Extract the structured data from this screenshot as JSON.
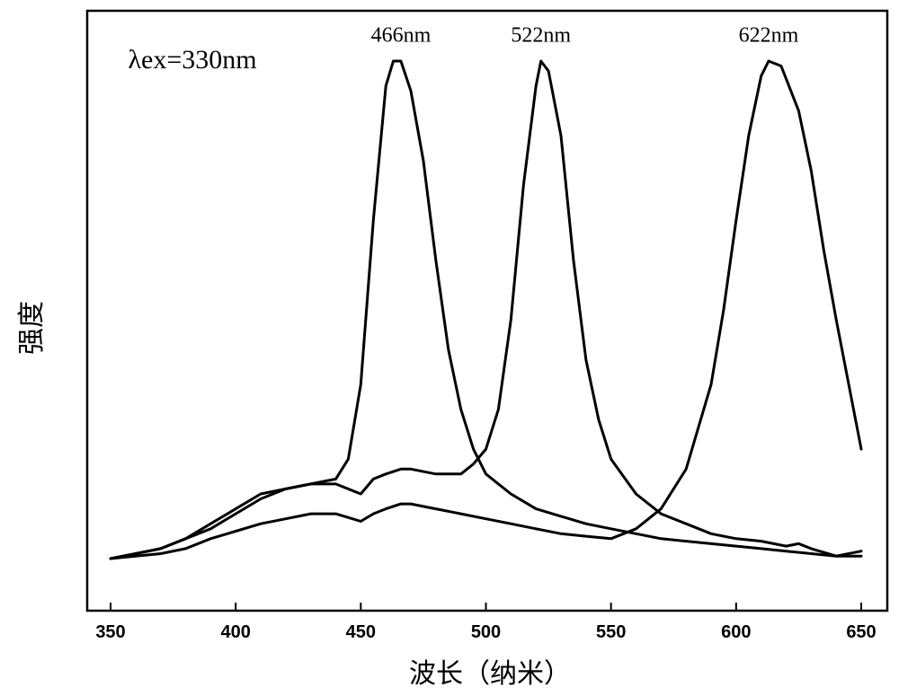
{
  "chart_data": {
    "type": "line",
    "xlabel": "波长（纳米）",
    "ylabel": "强度",
    "xlim": [
      350,
      650
    ],
    "ylim": [
      0,
      1.05
    ],
    "xticks": [
      350,
      400,
      450,
      500,
      550,
      600,
      650
    ],
    "yticks_shown": false,
    "grid": false,
    "legend": "none",
    "annotations": [
      {
        "text": "λex=330nm",
        "x": 357,
        "y": 1.0
      },
      {
        "text": "466nm",
        "x": 466,
        "y": 1.035
      },
      {
        "text": "522nm",
        "x": 522,
        "y": 1.035
      },
      {
        "text": "622nm",
        "x": 613,
        "y": 1.035
      }
    ],
    "series": [
      {
        "x": [
          350,
          360,
          370,
          380,
          390,
          400,
          410,
          420,
          430,
          440,
          445,
          450,
          455,
          460,
          463,
          466,
          470,
          475,
          480,
          485,
          490,
          495,
          500,
          510,
          520,
          530,
          540,
          550,
          560,
          570,
          580,
          590,
          600,
          610,
          620,
          630,
          640,
          650
        ],
        "y": [
          0.0,
          0.01,
          0.02,
          0.04,
          0.06,
          0.09,
          0.12,
          0.14,
          0.15,
          0.16,
          0.2,
          0.35,
          0.68,
          0.95,
          1.0,
          1.0,
          0.94,
          0.8,
          0.6,
          0.42,
          0.3,
          0.22,
          0.17,
          0.13,
          0.1,
          0.085,
          0.07,
          0.06,
          0.05,
          0.04,
          0.035,
          0.03,
          0.025,
          0.02,
          0.015,
          0.01,
          0.005,
          0.005
        ]
      },
      {
        "x": [
          350,
          360,
          370,
          380,
          390,
          400,
          410,
          420,
          430,
          440,
          450,
          455,
          460,
          466,
          470,
          480,
          490,
          495,
          500,
          505,
          510,
          515,
          520,
          522,
          525,
          530,
          535,
          540,
          545,
          550,
          560,
          570,
          580,
          590,
          600,
          610,
          620,
          625,
          630,
          640,
          650
        ],
        "y": [
          0.0,
          0.01,
          0.02,
          0.04,
          0.07,
          0.1,
          0.13,
          0.14,
          0.15,
          0.15,
          0.13,
          0.16,
          0.17,
          0.18,
          0.18,
          0.17,
          0.17,
          0.19,
          0.22,
          0.3,
          0.48,
          0.75,
          0.95,
          1.0,
          0.98,
          0.85,
          0.6,
          0.4,
          0.28,
          0.2,
          0.13,
          0.09,
          0.07,
          0.05,
          0.04,
          0.035,
          0.025,
          0.03,
          0.02,
          0.005,
          0.015
        ]
      },
      {
        "x": [
          350,
          360,
          370,
          380,
          390,
          400,
          410,
          420,
          430,
          440,
          450,
          455,
          460,
          466,
          470,
          480,
          490,
          500,
          510,
          520,
          530,
          540,
          550,
          560,
          570,
          580,
          590,
          595,
          600,
          605,
          610,
          613,
          618,
          625,
          630,
          635,
          640,
          645,
          650
        ],
        "y": [
          0.0,
          0.005,
          0.01,
          0.02,
          0.04,
          0.055,
          0.07,
          0.08,
          0.09,
          0.09,
          0.075,
          0.09,
          0.1,
          0.11,
          0.11,
          0.1,
          0.09,
          0.08,
          0.07,
          0.06,
          0.05,
          0.045,
          0.04,
          0.06,
          0.1,
          0.18,
          0.35,
          0.5,
          0.68,
          0.85,
          0.97,
          1.0,
          0.99,
          0.9,
          0.78,
          0.62,
          0.48,
          0.35,
          0.22
        ]
      }
    ]
  }
}
